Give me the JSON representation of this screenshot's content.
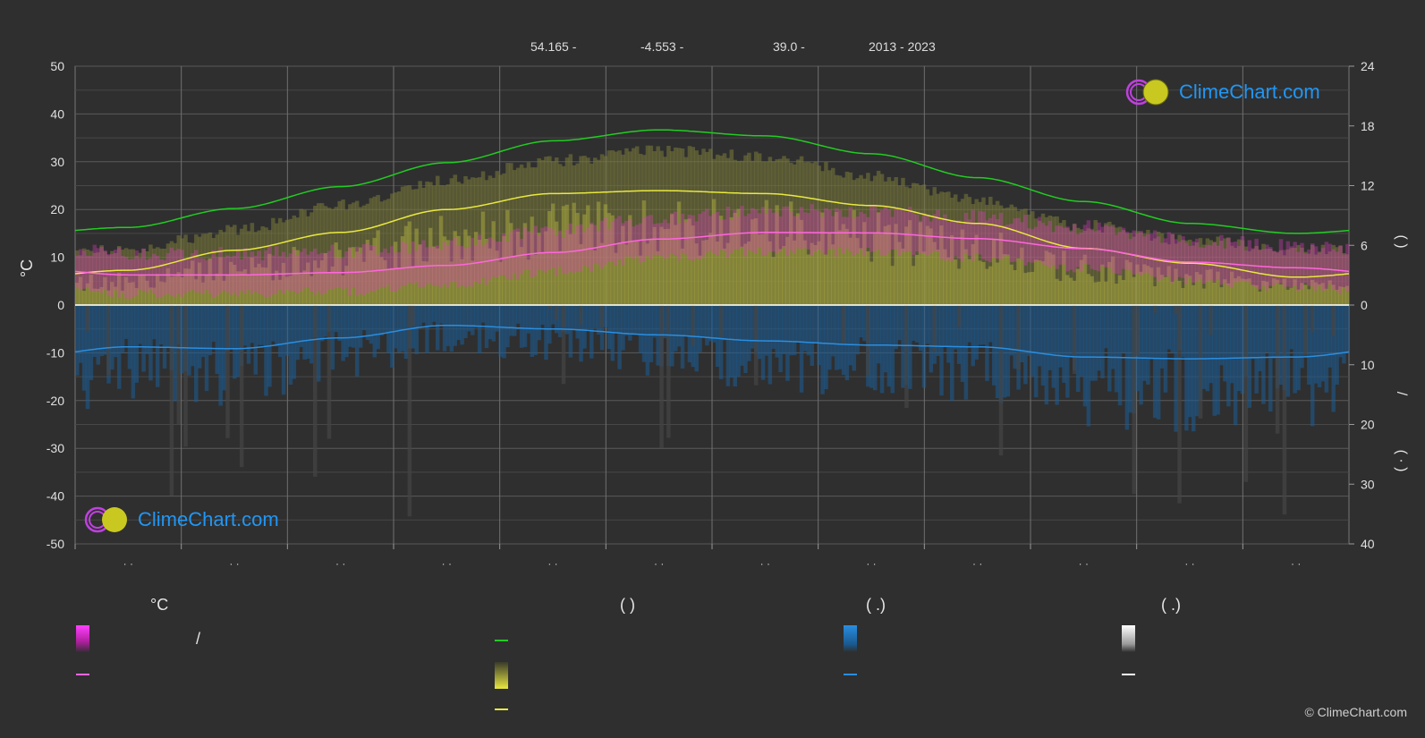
{
  "header": {
    "lat": "54.165 -",
    "lon": "-4.553 -",
    "elev": "39.0 -",
    "years": "2013 - 2023"
  },
  "logo": {
    "text": "ClimeChart.com"
  },
  "copyright": "© ClimeChart.com",
  "legend": {
    "col1_head": "°C",
    "col2_head": "(            )",
    "col3_head": "(    .)",
    "col4_head": "(    .)",
    "slash": "/"
  },
  "axes": {
    "left_label": "°C",
    "right_upper_label": "(        )",
    "right_lower_label": "/",
    "right_lower_label2": "(  ·  )"
  },
  "colors": {
    "background": "#2f2f2f",
    "daylight": "#22cc22",
    "sunshine": "#e8e840",
    "temp": "#ff66dd",
    "temp_band": "#e040c0",
    "precip": "#2a8ee0",
    "snow": "#ffffff"
  },
  "chart_data": {
    "type": "area",
    "x_ticks": [
      "· ·",
      "· ·",
      "· ·",
      "· ·",
      "· ·",
      "· ·",
      "· ·",
      "· ·",
      "· ·",
      "· ·",
      "· ·",
      "· ·"
    ],
    "y_left": {
      "label": "°C",
      "ylim": [
        -50,
        50
      ],
      "ticks": [
        50,
        40,
        30,
        20,
        10,
        0,
        -10,
        -20,
        -30,
        -40,
        -50
      ]
    },
    "y_right_top": {
      "ylim": [
        0,
        24
      ],
      "ticks": [
        24,
        18,
        12,
        6,
        0
      ]
    },
    "y_right_bottom": {
      "ylim": [
        0,
        40
      ],
      "ticks": [
        0,
        10,
        20,
        30,
        40
      ]
    },
    "months": [
      1,
      2,
      3,
      4,
      5,
      6,
      7,
      8,
      9,
      10,
      11,
      12
    ],
    "series": [
      {
        "key": "daylight_hours",
        "values": [
          7.8,
          9.7,
          11.9,
          14.3,
          16.5,
          17.6,
          17.0,
          15.2,
          12.8,
          10.4,
          8.2,
          7.2
        ]
      },
      {
        "key": "sunshine_hours",
        "values": [
          3.5,
          5.5,
          7.3,
          9.6,
          11.2,
          11.5,
          11.2,
          10.0,
          8.2,
          5.7,
          4.2,
          2.8
        ]
      },
      {
        "key": "daylight_band_top_hours",
        "values": [
          5.5,
          7.5,
          10.0,
          12.5,
          14.5,
          15.5,
          15.0,
          13.0,
          10.5,
          8.0,
          6.5,
          5.5
        ]
      },
      {
        "key": "temp_mean_c",
        "values": [
          6.3,
          6.3,
          6.8,
          8.3,
          11.0,
          13.8,
          15.2,
          15.1,
          13.9,
          11.8,
          9.0,
          7.8
        ]
      },
      {
        "key": "precip_mm",
        "values": [
          7.0,
          7.3,
          5.5,
          3.4,
          4.0,
          5.0,
          6.0,
          6.7,
          7.0,
          8.7,
          9.0,
          8.7
        ]
      }
    ]
  }
}
